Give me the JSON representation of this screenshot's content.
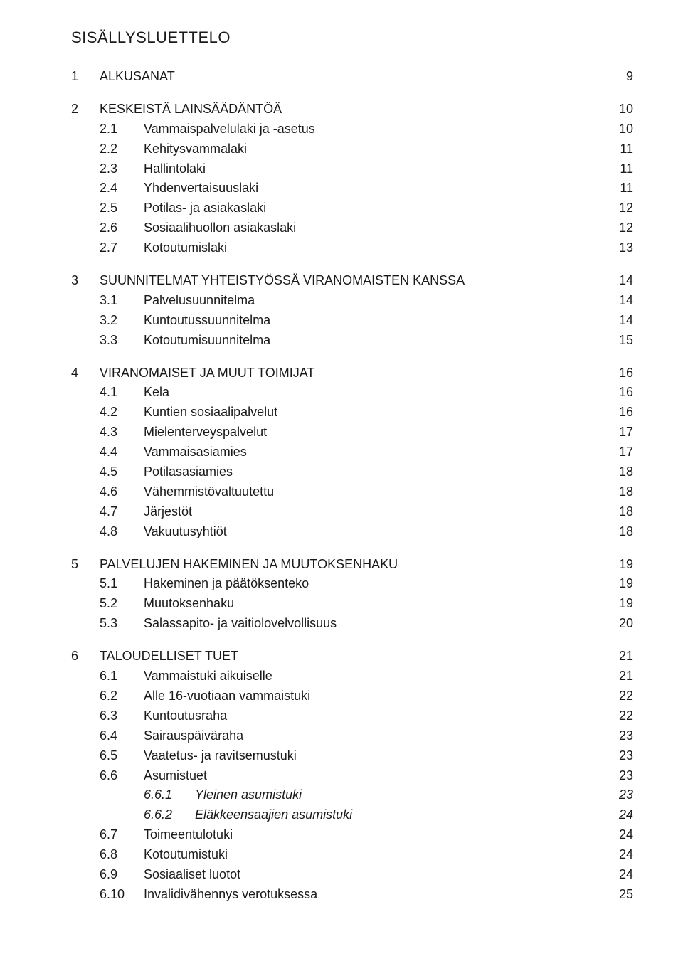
{
  "title": "SISÄLLYSLUETTELO",
  "sections": [
    {
      "num": "1",
      "label": "ALKUSANAT",
      "page": "9",
      "subs": []
    },
    {
      "num": "2",
      "label": "KESKEISTÄ LAINSÄÄDÄNTÖÄ",
      "page": "10",
      "subs": [
        {
          "num": "2.1",
          "label": "Vammaispalvelulaki ja -asetus",
          "page": "10"
        },
        {
          "num": "2.2",
          "label": "Kehitysvammalaki",
          "page": "11"
        },
        {
          "num": "2.3",
          "label": "Hallintolaki",
          "page": "11"
        },
        {
          "num": "2.4",
          "label": "Yhdenvertaisuuslaki",
          "page": "11"
        },
        {
          "num": "2.5",
          "label": "Potilas- ja asiakaslaki",
          "page": "12"
        },
        {
          "num": "2.6",
          "label": "Sosiaalihuollon asiakaslaki",
          "page": "12"
        },
        {
          "num": "2.7",
          "label": "Kotoutumislaki",
          "page": "13"
        }
      ]
    },
    {
      "num": "3",
      "label": "SUUNNITELMAT YHTEISTYÖSSÄ VIRANOMAISTEN KANSSA",
      "page": "14",
      "subs": [
        {
          "num": "3.1",
          "label": "Palvelusuunnitelma",
          "page": "14"
        },
        {
          "num": "3.2",
          "label": "Kuntoutussuunnitelma",
          "page": "14"
        },
        {
          "num": "3.3",
          "label": "Kotoutumisuunnitelma",
          "page": "15"
        }
      ]
    },
    {
      "num": "4",
      "label": "VIRANOMAISET JA MUUT TOIMIJAT",
      "page": "16",
      "subs": [
        {
          "num": "4.1",
          "label": "Kela",
          "page": "16"
        },
        {
          "num": "4.2",
          "label": "Kuntien sosiaalipalvelut",
          "page": "16"
        },
        {
          "num": "4.3",
          "label": "Mielenterveyspalvelut",
          "page": "17"
        },
        {
          "num": "4.4",
          "label": "Vammaisasiamies",
          "page": "17"
        },
        {
          "num": "4.5",
          "label": "Potilasasiamies",
          "page": "18"
        },
        {
          "num": "4.6",
          "label": "Vähemmistövaltuutettu",
          "page": "18"
        },
        {
          "num": "4.7",
          "label": "Järjestöt",
          "page": "18"
        },
        {
          "num": "4.8",
          "label": "Vakuutusyhtiöt",
          "page": "18"
        }
      ]
    },
    {
      "num": "5",
      "label": "PALVELUJEN HAKEMINEN JA MUUTOKSENHAKU",
      "page": "19",
      "subs": [
        {
          "num": "5.1",
          "label": "Hakeminen ja päätöksenteko",
          "page": "19"
        },
        {
          "num": "5.2",
          "label": "Muutoksenhaku",
          "page": "19"
        },
        {
          "num": "5.3",
          "label": "Salassapito- ja vaitiolovelvollisuus",
          "page": "20"
        }
      ]
    },
    {
      "num": "6",
      "label": "TALOUDELLISET TUET",
      "page": "21",
      "subs": [
        {
          "num": "6.1",
          "label": "Vammaistuki aikuiselle",
          "page": "21"
        },
        {
          "num": "6.2",
          "label": "Alle 16-vuotiaan vammaistuki",
          "page": "22"
        },
        {
          "num": "6.3",
          "label": "Kuntoutusraha",
          "page": "22"
        },
        {
          "num": "6.4",
          "label": "Sairauspäiväraha",
          "page": "23"
        },
        {
          "num": "6.5",
          "label": "Vaatetus- ja ravitsemustuki",
          "page": "23"
        },
        {
          "num": "6.6",
          "label": "Asumistuet",
          "page": "23",
          "subsubs": [
            {
              "num": "6.6.1",
              "label": "Yleinen asumistuki",
              "page": "23",
              "italic": true
            },
            {
              "num": "6.6.2",
              "label": "Eläkkeensaajien asumistuki",
              "page": "24",
              "italic": true
            }
          ]
        },
        {
          "num": "6.7",
          "label": "Toimeentulotuki",
          "page": "24"
        },
        {
          "num": "6.8",
          "label": "Kotoutumistuki",
          "page": "24"
        },
        {
          "num": "6.9",
          "label": "Sosiaaliset luotot",
          "page": "24"
        },
        {
          "num": "6.10",
          "label": "Invalidivähennys verotuksessa",
          "page": "25"
        }
      ]
    }
  ]
}
